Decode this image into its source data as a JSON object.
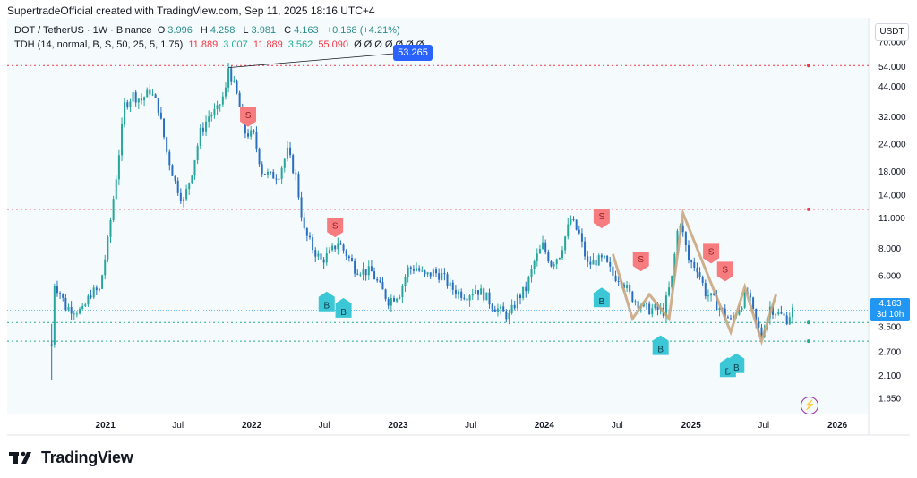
{
  "header": {
    "attribution": "SupertradeOfficial created with TradingView.com, Sep 11, 2025 18:16 UTC+4"
  },
  "legend": {
    "symbol": "DOT / TetherUS · 1W · Binance",
    "open_label": "O",
    "open": "3.996",
    "high_label": "H",
    "high": "4.258",
    "low_label": "L",
    "low": "3.981",
    "close_label": "C",
    "close": "4.163",
    "change": "+0.168 (+4.21%)",
    "indicator_name": "TDH (14, normal, B, S, 50, 25, 5, 1.75)",
    "indicator_values": [
      "11.889",
      "3.007",
      "11.889",
      "3.562",
      "55.090"
    ],
    "indicator_zeros": "Ø Ø Ø Ø Ø Ø Ø"
  },
  "currency": "USDT",
  "last_price": "4.163",
  "countdown": "3d 10h",
  "peak_label": "53.265",
  "footer": {
    "brand": "TradingView"
  },
  "colors": {
    "up": "#26a69a",
    "candle": "#2a6fbf",
    "sell": "#f77c80",
    "buy": "#3cc7d6",
    "red_line": "#f23645",
    "green_line": "#22ab94",
    "wave": "#c8a27a",
    "bg": "#f5fbfd"
  },
  "chart_data": {
    "type": "candlestick",
    "y_scale": "log",
    "ylim": [
      1.4,
      90
    ],
    "y_ticks": [
      "70.000",
      "54.000",
      "44.000",
      "32.000",
      "24.000",
      "18.000",
      "14.000",
      "11.000",
      "8.000",
      "6.000",
      "4.500",
      "3.500",
      "2.700",
      "2.100",
      "1.650"
    ],
    "x_ticks": [
      "2021",
      "Jul",
      "2022",
      "Jul",
      "2023",
      "Jul",
      "2024",
      "Jul",
      "2025",
      "Jul",
      "2026"
    ],
    "horizontal_levels": [
      {
        "value": 54.5,
        "color": "red"
      },
      {
        "value": 12.0,
        "color": "red"
      },
      {
        "value": 3.65,
        "color": "green"
      },
      {
        "value": 3.0,
        "color": "green"
      }
    ],
    "price_series": [
      [
        "2020-08-20",
        2.9
      ],
      [
        "2020-08-27",
        5.5
      ],
      [
        "2020-09-10",
        5.0
      ],
      [
        "2020-09-24",
        4.3
      ],
      [
        "2020-10-15",
        4.2
      ],
      [
        "2020-11-05",
        4.1
      ],
      [
        "2020-11-26",
        5.0
      ],
      [
        "2020-12-17",
        5.1
      ],
      [
        "2021-01-07",
        8.5
      ],
      [
        "2021-01-28",
        17.0
      ],
      [
        "2021-02-18",
        36.0
      ],
      [
        "2021-03-11",
        40.0
      ],
      [
        "2021-04-01",
        38.0
      ],
      [
        "2021-04-22",
        42.0
      ],
      [
        "2021-05-13",
        35.0
      ],
      [
        "2021-06-03",
        22.0
      ],
      [
        "2021-06-24",
        16.0
      ],
      [
        "2021-07-15",
        13.0
      ],
      [
        "2021-08-05",
        18.0
      ],
      [
        "2021-08-26",
        27.0
      ],
      [
        "2021-09-16",
        32.0
      ],
      [
        "2021-10-07",
        34.0
      ],
      [
        "2021-10-28",
        42.0
      ],
      [
        "2021-11-04",
        53.3
      ],
      [
        "2021-11-25",
        40.0
      ],
      [
        "2021-12-16",
        27.0
      ],
      [
        "2022-01-06",
        26.0
      ],
      [
        "2022-01-27",
        18.0
      ],
      [
        "2022-02-17",
        17.0
      ],
      [
        "2022-03-10",
        17.5
      ],
      [
        "2022-03-31",
        22.0
      ],
      [
        "2022-04-21",
        17.0
      ],
      [
        "2022-05-12",
        9.5
      ],
      [
        "2022-06-02",
        8.0
      ],
      [
        "2022-06-23",
        7.0
      ],
      [
        "2022-07-14",
        7.5
      ],
      [
        "2022-08-04",
        8.5
      ],
      [
        "2022-08-25",
        7.5
      ],
      [
        "2022-09-15",
        6.5
      ],
      [
        "2022-10-06",
        6.3
      ],
      [
        "2022-10-27",
        6.2
      ],
      [
        "2022-11-17",
        5.3
      ],
      [
        "2022-12-08",
        4.6
      ],
      [
        "2023-01-05",
        5.0
      ],
      [
        "2023-01-26",
        6.4
      ],
      [
        "2023-02-16",
        6.5
      ],
      [
        "2023-03-09",
        5.9
      ],
      [
        "2023-03-30",
        6.2
      ],
      [
        "2023-04-20",
        6.0
      ],
      [
        "2023-05-11",
        5.3
      ],
      [
        "2023-06-01",
        5.0
      ],
      [
        "2023-06-22",
        4.9
      ],
      [
        "2023-07-13",
        5.2
      ],
      [
        "2023-08-03",
        4.9
      ],
      [
        "2023-08-24",
        4.4
      ],
      [
        "2023-09-14",
        4.1
      ],
      [
        "2023-10-05",
        3.9
      ],
      [
        "2023-10-26",
        4.7
      ],
      [
        "2023-11-16",
        5.2
      ],
      [
        "2023-12-07",
        6.9
      ],
      [
        "2023-12-28",
        8.2
      ],
      [
        "2024-01-18",
        6.8
      ],
      [
        "2024-02-08",
        7.5
      ],
      [
        "2024-03-07",
        10.8
      ],
      [
        "2024-03-28",
        9.2
      ],
      [
        "2024-04-18",
        6.7
      ],
      [
        "2024-05-09",
        7.0
      ],
      [
        "2024-05-30",
        7.0
      ],
      [
        "2024-06-20",
        6.0
      ],
      [
        "2024-07-11",
        5.8
      ],
      [
        "2024-08-01",
        4.9
      ],
      [
        "2024-08-22",
        4.5
      ],
      [
        "2024-09-12",
        4.2
      ],
      [
        "2024-10-03",
        4.2
      ],
      [
        "2024-10-24",
        4.1
      ],
      [
        "2024-11-14",
        5.8
      ],
      [
        "2024-11-28",
        9.5
      ],
      [
        "2024-12-05",
        10.6
      ],
      [
        "2024-12-26",
        7.0
      ],
      [
        "2025-01-16",
        6.5
      ],
      [
        "2025-02-06",
        5.0
      ],
      [
        "2025-02-27",
        4.6
      ],
      [
        "2025-03-20",
        4.1
      ],
      [
        "2025-04-10",
        3.7
      ],
      [
        "2025-05-01",
        4.3
      ],
      [
        "2025-05-22",
        5.0
      ],
      [
        "2025-06-12",
        3.6
      ],
      [
        "2025-06-26",
        3.2
      ],
      [
        "2025-07-17",
        4.3
      ],
      [
        "2025-08-07",
        4.0
      ],
      [
        "2025-08-28",
        3.8
      ],
      [
        "2025-09-11",
        4.163
      ]
    ],
    "sell_signals": [
      [
        "2021-12-23",
        32.0
      ],
      [
        "2022-07-28",
        10.0
      ],
      [
        "2024-05-23",
        11.0
      ],
      [
        "2024-08-29",
        7.0
      ],
      [
        "2025-02-20",
        7.6
      ],
      [
        "2025-03-27",
        6.3
      ]
    ],
    "buy_signals": [
      [
        "2022-07-07",
        4.6
      ],
      [
        "2022-08-18",
        4.3
      ],
      [
        "2024-05-23",
        4.8
      ],
      [
        "2024-10-17",
        2.9
      ],
      [
        "2025-04-03",
        2.3
      ],
      [
        "2025-04-24",
        2.4
      ]
    ],
    "wave_path": [
      [
        "2024-06-20",
        7.5
      ],
      [
        "2024-08-08",
        3.8
      ],
      [
        "2024-09-19",
        4.9
      ],
      [
        "2024-11-07",
        3.8
      ],
      [
        "2024-12-12",
        11.5
      ],
      [
        "2025-04-10",
        3.3
      ],
      [
        "2025-05-15",
        5.3
      ],
      [
        "2025-06-26",
        3.0
      ],
      [
        "2025-08-01",
        4.9
      ]
    ]
  }
}
